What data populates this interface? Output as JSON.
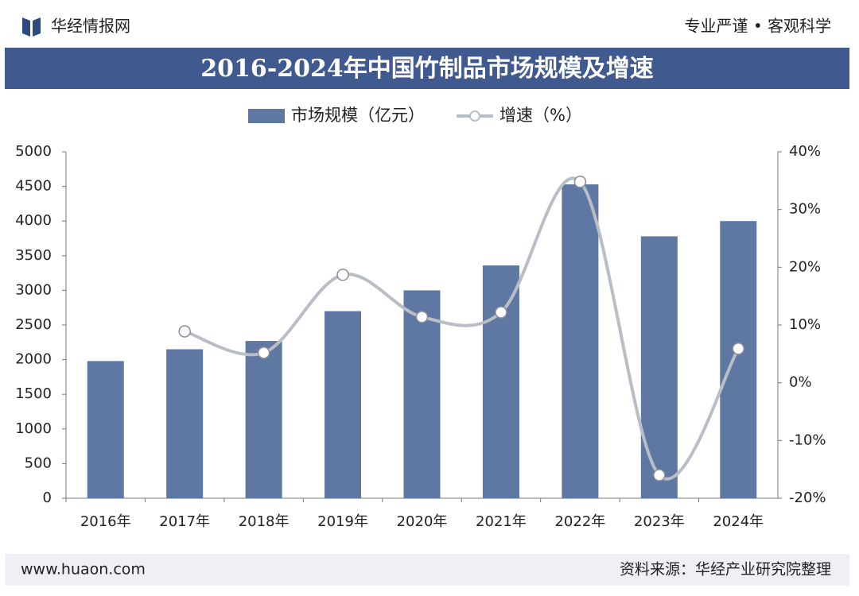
{
  "header": {
    "logo": "华经情报网",
    "slogan": "专业严谨 • 客观科学"
  },
  "chart_data": {
    "type": "bar",
    "title": "2016-2024年中国竹制品市场规模及增速",
    "categories": [
      "2016年",
      "2017年",
      "2018年",
      "2019年",
      "2020年",
      "2021年",
      "2022年",
      "2023年",
      "2024年"
    ],
    "series": [
      {
        "name": "市场规模（亿元）",
        "type": "bar",
        "color": "#5f77a3",
        "values": [
          1980,
          2150,
          2270,
          2700,
          3000,
          3360,
          4530,
          3780,
          4000
        ]
      },
      {
        "name": "增速（%）",
        "type": "line",
        "axis": "y2",
        "color": "#b9bdc5",
        "values": [
          null,
          8.9,
          5.2,
          18.7,
          11.4,
          12.2,
          34.8,
          -16.0,
          5.9
        ]
      }
    ],
    "ylim": [
      0,
      5000
    ],
    "yticks": [
      0,
      500,
      1000,
      1500,
      2000,
      2500,
      3000,
      3500,
      4000,
      4500,
      5000
    ],
    "y2lim": [
      -20,
      40
    ],
    "y2ticks": [
      {
        "value": -20,
        "label": "-20%"
      },
      {
        "value": -10,
        "label": "-10%"
      },
      {
        "value": 0,
        "label": "0%"
      },
      {
        "value": 10,
        "label": "10%"
      },
      {
        "value": 20,
        "label": "20%"
      },
      {
        "value": 30,
        "label": "30%"
      },
      {
        "value": 40,
        "label": "40%"
      }
    ],
    "grid": false,
    "legend": "top"
  },
  "footer": {
    "website": "www.huaon.com",
    "source": "资料来源：华经产业研究院整理"
  }
}
